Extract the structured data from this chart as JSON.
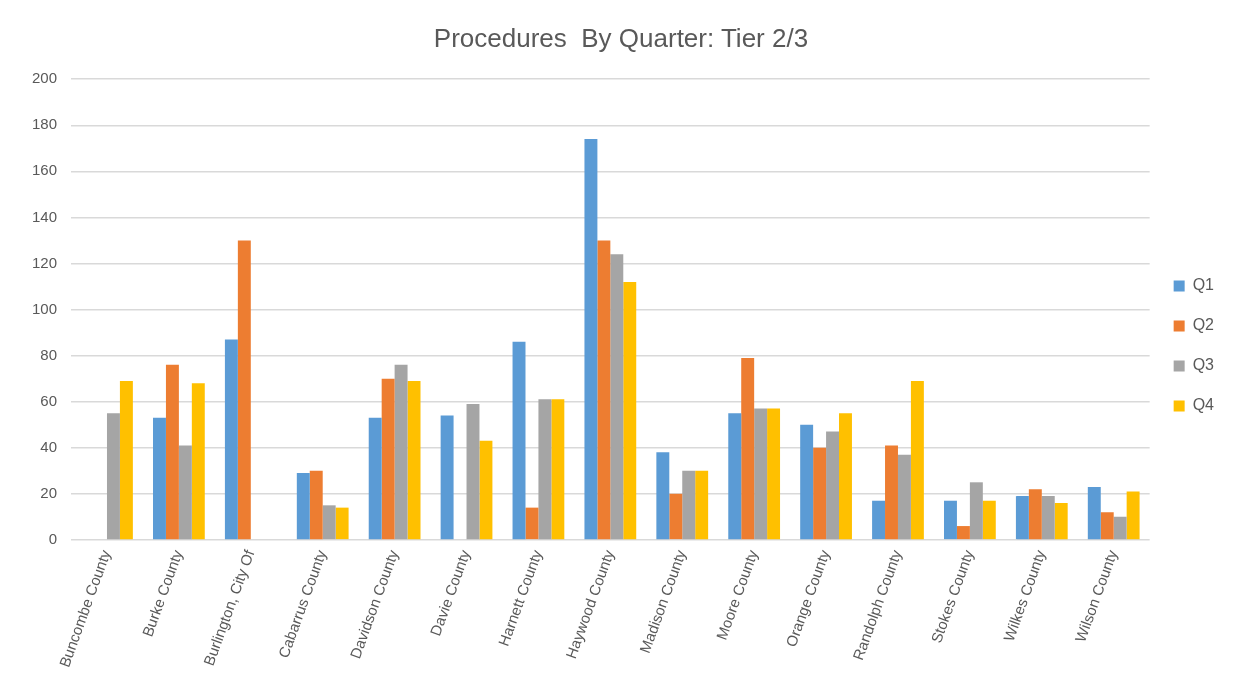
{
  "chart_data": {
    "type": "bar",
    "title": "Procedures  By Quarter: Tier 2/3",
    "categories": [
      "Buncombe County",
      "Burke County",
      "Burlington, City Of",
      "Cabarrus County",
      "Davidson County",
      "Davie County",
      "Harnett County",
      "Haywood County",
      "Madison County",
      "Moore County",
      "Orange County",
      "Randolph County",
      "Stokes County",
      "Wilkes County",
      "Wilson County"
    ],
    "series": [
      {
        "name": "Q1",
        "color": "#5b9bd5",
        "values": [
          null,
          53,
          87,
          29,
          53,
          54,
          86,
          174,
          38,
          55,
          50,
          17,
          17,
          19,
          23
        ]
      },
      {
        "name": "Q2",
        "color": "#ed7d31",
        "values": [
          null,
          76,
          130,
          30,
          70,
          null,
          14,
          130,
          20,
          79,
          40,
          41,
          6,
          22,
          12
        ]
      },
      {
        "name": "Q3",
        "color": "#a5a5a5",
        "values": [
          55,
          41,
          null,
          15,
          76,
          59,
          61,
          124,
          30,
          57,
          47,
          37,
          25,
          19,
          10
        ]
      },
      {
        "name": "Q4",
        "color": "#ffc000",
        "values": [
          69,
          68,
          null,
          14,
          69,
          43,
          61,
          112,
          30,
          57,
          55,
          69,
          17,
          16,
          21
        ]
      }
    ],
    "ylim": [
      0,
      200
    ],
    "yticks": [
      0,
      20,
      40,
      60,
      80,
      100,
      120,
      140,
      160,
      180,
      200
    ],
    "grid": "y",
    "legend": "right"
  }
}
